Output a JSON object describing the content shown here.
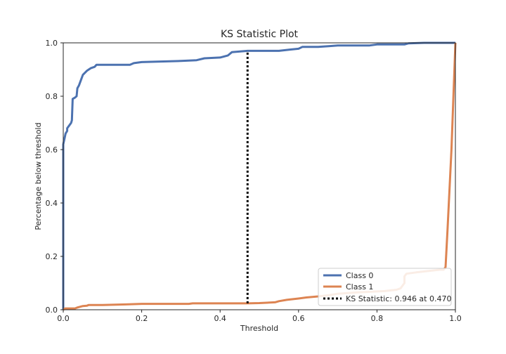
{
  "chart_data": {
    "type": "line",
    "title": "KS Statistic Plot",
    "xlabel": "Threshold",
    "ylabel": "Percentage below threshold",
    "xlim": [
      0,
      1
    ],
    "ylim": [
      0,
      1
    ],
    "x_ticks": [
      "0.0",
      "0.2",
      "0.4",
      "0.6",
      "0.8",
      "1.0"
    ],
    "y_ticks": [
      "0.0",
      "0.2",
      "0.4",
      "0.6",
      "0.8",
      "1.0"
    ],
    "grid": false,
    "legend_position": "lower-right",
    "series": [
      {
        "name": "Class 0",
        "color": "#4c72b0",
        "points": [
          [
            0.0,
            0.0
          ],
          [
            0.0,
            0.62
          ],
          [
            0.003,
            0.64
          ],
          [
            0.006,
            0.66
          ],
          [
            0.01,
            0.67
          ],
          [
            0.01,
            0.68
          ],
          [
            0.015,
            0.69
          ],
          [
            0.02,
            0.7
          ],
          [
            0.022,
            0.71
          ],
          [
            0.024,
            0.79
          ],
          [
            0.03,
            0.795
          ],
          [
            0.034,
            0.8
          ],
          [
            0.036,
            0.83
          ],
          [
            0.04,
            0.84
          ],
          [
            0.045,
            0.86
          ],
          [
            0.05,
            0.88
          ],
          [
            0.06,
            0.895
          ],
          [
            0.07,
            0.905
          ],
          [
            0.08,
            0.91
          ],
          [
            0.085,
            0.918
          ],
          [
            0.11,
            0.918
          ],
          [
            0.17,
            0.918
          ],
          [
            0.18,
            0.924
          ],
          [
            0.2,
            0.928
          ],
          [
            0.3,
            0.932
          ],
          [
            0.34,
            0.935
          ],
          [
            0.36,
            0.942
          ],
          [
            0.4,
            0.945
          ],
          [
            0.42,
            0.953
          ],
          [
            0.43,
            0.965
          ],
          [
            0.47,
            0.97
          ],
          [
            0.55,
            0.97
          ],
          [
            0.58,
            0.975
          ],
          [
            0.6,
            0.978
          ],
          [
            0.61,
            0.985
          ],
          [
            0.65,
            0.985
          ],
          [
            0.68,
            0.988
          ],
          [
            0.7,
            0.99
          ],
          [
            0.78,
            0.99
          ],
          [
            0.8,
            0.994
          ],
          [
            0.85,
            0.994
          ],
          [
            0.87,
            0.994
          ],
          [
            0.88,
            0.998
          ],
          [
            0.9,
            0.999
          ],
          [
            0.92,
            1.0
          ],
          [
            1.0,
            1.0
          ]
        ]
      },
      {
        "name": "Class 1",
        "color": "#dd8452",
        "points": [
          [
            0.0,
            0.0
          ],
          [
            0.005,
            0.005
          ],
          [
            0.03,
            0.005
          ],
          [
            0.035,
            0.008
          ],
          [
            0.04,
            0.01
          ],
          [
            0.05,
            0.014
          ],
          [
            0.06,
            0.015
          ],
          [
            0.065,
            0.018
          ],
          [
            0.1,
            0.018
          ],
          [
            0.16,
            0.02
          ],
          [
            0.2,
            0.022
          ],
          [
            0.3,
            0.022
          ],
          [
            0.32,
            0.022
          ],
          [
            0.33,
            0.024
          ],
          [
            0.4,
            0.024
          ],
          [
            0.47,
            0.024
          ],
          [
            0.5,
            0.025
          ],
          [
            0.54,
            0.028
          ],
          [
            0.55,
            0.032
          ],
          [
            0.57,
            0.037
          ],
          [
            0.6,
            0.042
          ],
          [
            0.62,
            0.046
          ],
          [
            0.65,
            0.05
          ],
          [
            0.68,
            0.055
          ],
          [
            0.7,
            0.06
          ],
          [
            0.75,
            0.065
          ],
          [
            0.82,
            0.07
          ],
          [
            0.85,
            0.075
          ],
          [
            0.86,
            0.08
          ],
          [
            0.87,
            0.1
          ],
          [
            0.87,
            0.125
          ],
          [
            0.875,
            0.135
          ],
          [
            0.9,
            0.14
          ],
          [
            0.93,
            0.145
          ],
          [
            0.96,
            0.15
          ],
          [
            0.97,
            0.15
          ],
          [
            0.975,
            0.16
          ],
          [
            0.98,
            0.3
          ],
          [
            0.99,
            0.6
          ],
          [
            1.0,
            1.0
          ]
        ]
      }
    ],
    "ks_line": {
      "label": "KS Statistic: 0.946 at 0.470",
      "x": 0.47,
      "y_start": 0.024,
      "y_end": 0.97,
      "color": "#000000"
    }
  }
}
